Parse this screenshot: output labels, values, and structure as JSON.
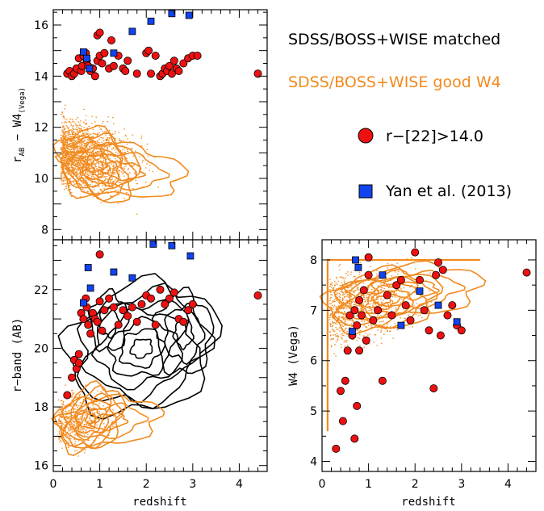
{
  "chart_data": [
    {
      "panel": "top-left",
      "type": "scatter",
      "ylabel": "r_AB − W4_(Vega)",
      "ylabel_parts": {
        "r": "r",
        "r_sub": "AB",
        "minus": " − ",
        "w": "W4",
        "w_sub": "(Vega)"
      },
      "xlim": [
        0,
        4.6
      ],
      "ylim": [
        7.6,
        16.6
      ],
      "yticks": [
        8,
        10,
        12,
        14,
        16
      ],
      "series": [
        {
          "name": "r−[22]>14.0",
          "marker": "circle",
          "color": "#ee1111",
          "x": [
            0.3,
            0.35,
            0.4,
            0.45,
            0.5,
            0.55,
            0.6,
            0.62,
            0.65,
            0.7,
            0.72,
            0.75,
            0.8,
            0.85,
            0.9,
            0.95,
            1.0,
            1.05,
            1.1,
            1.2,
            1.25,
            1.3,
            1.4,
            1.5,
            1.55,
            1.6,
            1.8,
            2.0,
            2.05,
            2.1,
            2.2,
            2.3,
            2.35,
            2.4,
            2.45,
            2.5,
            2.55,
            2.6,
            2.65,
            2.7,
            2.8,
            2.9,
            3.0,
            3.1,
            4.4,
            0.95,
            1.0
          ],
          "y": [
            14.1,
            14.2,
            14.0,
            14.1,
            14.3,
            14.7,
            14.2,
            14.4,
            14.8,
            14.9,
            14.6,
            14.4,
            14.2,
            14.3,
            14.0,
            14.6,
            14.8,
            14.5,
            14.9,
            14.3,
            15.4,
            14.4,
            14.8,
            14.3,
            14.2,
            14.6,
            14.1,
            14.9,
            15.0,
            14.1,
            14.8,
            14.0,
            14.1,
            14.3,
            14.2,
            14.4,
            14.1,
            14.6,
            14.3,
            14.2,
            14.5,
            14.7,
            14.8,
            14.8,
            14.1,
            15.6,
            15.7
          ]
        },
        {
          "name": "Yan et al. (2013)",
          "marker": "square",
          "color": "#1144ee",
          "x": [
            0.65,
            0.72,
            0.78,
            1.3,
            1.7,
            2.1,
            2.55,
            2.92
          ],
          "y": [
            14.95,
            14.7,
            14.3,
            14.9,
            15.75,
            16.15,
            16.45,
            16.38
          ]
        }
      ]
    },
    {
      "panel": "bottom-left",
      "type": "scatter",
      "xlabel": "redshift",
      "ylabel": "r−band (AB)",
      "xlim": [
        0,
        4.6
      ],
      "ylim": [
        15.8,
        23.7
      ],
      "xticks": [
        0,
        1,
        2,
        3,
        4
      ],
      "yticks": [
        16,
        18,
        20,
        22
      ],
      "series": [
        {
          "name": "r−[22]>14.0",
          "marker": "circle",
          "color": "#ee1111",
          "x": [
            0.3,
            0.4,
            0.45,
            0.5,
            0.55,
            0.6,
            0.65,
            0.7,
            0.72,
            0.75,
            0.8,
            0.85,
            0.9,
            0.95,
            1.0,
            1.05,
            1.1,
            1.2,
            1.3,
            1.4,
            1.5,
            1.6,
            1.7,
            1.8,
            1.9,
            2.0,
            2.1,
            2.2,
            2.3,
            2.4,
            2.5,
            2.6,
            2.7,
            2.8,
            2.9,
            3.0,
            4.4,
            1.0,
            0.55
          ],
          "y": [
            18.4,
            19.0,
            19.6,
            19.3,
            19.5,
            21.2,
            21.0,
            21.7,
            21.4,
            20.8,
            20.5,
            21.2,
            21.0,
            20.9,
            21.6,
            20.6,
            21.3,
            21.7,
            21.4,
            20.8,
            21.3,
            21.1,
            21.4,
            20.9,
            21.5,
            21.8,
            21.7,
            20.8,
            22.0,
            21.5,
            21.7,
            21.9,
            21.0,
            20.9,
            21.3,
            21.5,
            21.8,
            23.2,
            19.8
          ]
        },
        {
          "name": "Yan et al. (2013)",
          "marker": "square",
          "color": "#1144ee",
          "x": [
            0.65,
            0.75,
            0.8,
            1.3,
            1.7,
            2.15,
            2.55,
            2.95
          ],
          "y": [
            21.55,
            22.75,
            22.05,
            22.6,
            22.4,
            23.55,
            23.5,
            23.15
          ]
        }
      ]
    },
    {
      "panel": "bottom-right",
      "type": "scatter",
      "xlabel": "redshift",
      "ylabel": "W4 (Vega)",
      "xlim": [
        0,
        4.6
      ],
      "ylim": [
        3.8,
        8.4
      ],
      "xticks": [
        0,
        1,
        2,
        3,
        4
      ],
      "yticks": [
        4,
        5,
        6,
        7,
        8
      ],
      "series": [
        {
          "name": "r−[22]>14.0",
          "marker": "circle",
          "color": "#ee1111",
          "x": [
            0.3,
            0.4,
            0.45,
            0.5,
            0.55,
            0.6,
            0.65,
            0.7,
            0.75,
            0.8,
            0.85,
            0.9,
            0.95,
            1.0,
            1.1,
            1.2,
            1.3,
            1.4,
            1.5,
            1.6,
            1.7,
            1.8,
            1.9,
            2.0,
            2.1,
            2.2,
            2.3,
            2.4,
            2.45,
            2.5,
            2.55,
            2.6,
            2.7,
            2.8,
            2.9,
            3.0,
            4.4,
            0.7,
            0.75,
            1.0,
            0.8
          ],
          "y": [
            4.25,
            5.4,
            4.8,
            5.6,
            6.2,
            6.9,
            6.5,
            7.0,
            6.7,
            7.2,
            6.9,
            7.4,
            6.4,
            7.7,
            6.8,
            7.0,
            5.6,
            7.3,
            6.9,
            7.5,
            7.6,
            7.1,
            6.8,
            8.15,
            7.6,
            7.0,
            6.6,
            5.45,
            7.7,
            7.95,
            6.5,
            7.8,
            6.9,
            7.1,
            6.7,
            6.6,
            7.75,
            4.45,
            5.1,
            8.05,
            6.2
          ]
        },
        {
          "name": "Yan et al. (2013)",
          "marker": "square",
          "color": "#1144ee",
          "x": [
            0.65,
            0.72,
            0.78,
            1.3,
            1.7,
            2.1,
            2.5,
            2.9
          ],
          "y": [
            6.58,
            8.0,
            7.85,
            7.7,
            6.7,
            7.38,
            7.1,
            6.77
          ]
        }
      ]
    }
  ],
  "legend": {
    "line1": "SDSS/BOSS+WISE matched",
    "line2": "SDSS/BOSS+WISE good W4",
    "item1": "r−[22]>14.0",
    "item2": "Yan et al. (2013)"
  },
  "colors": {
    "orange": "#f28a1e",
    "black": "#000000",
    "red": "#ee1111",
    "blue": "#1144ee"
  }
}
